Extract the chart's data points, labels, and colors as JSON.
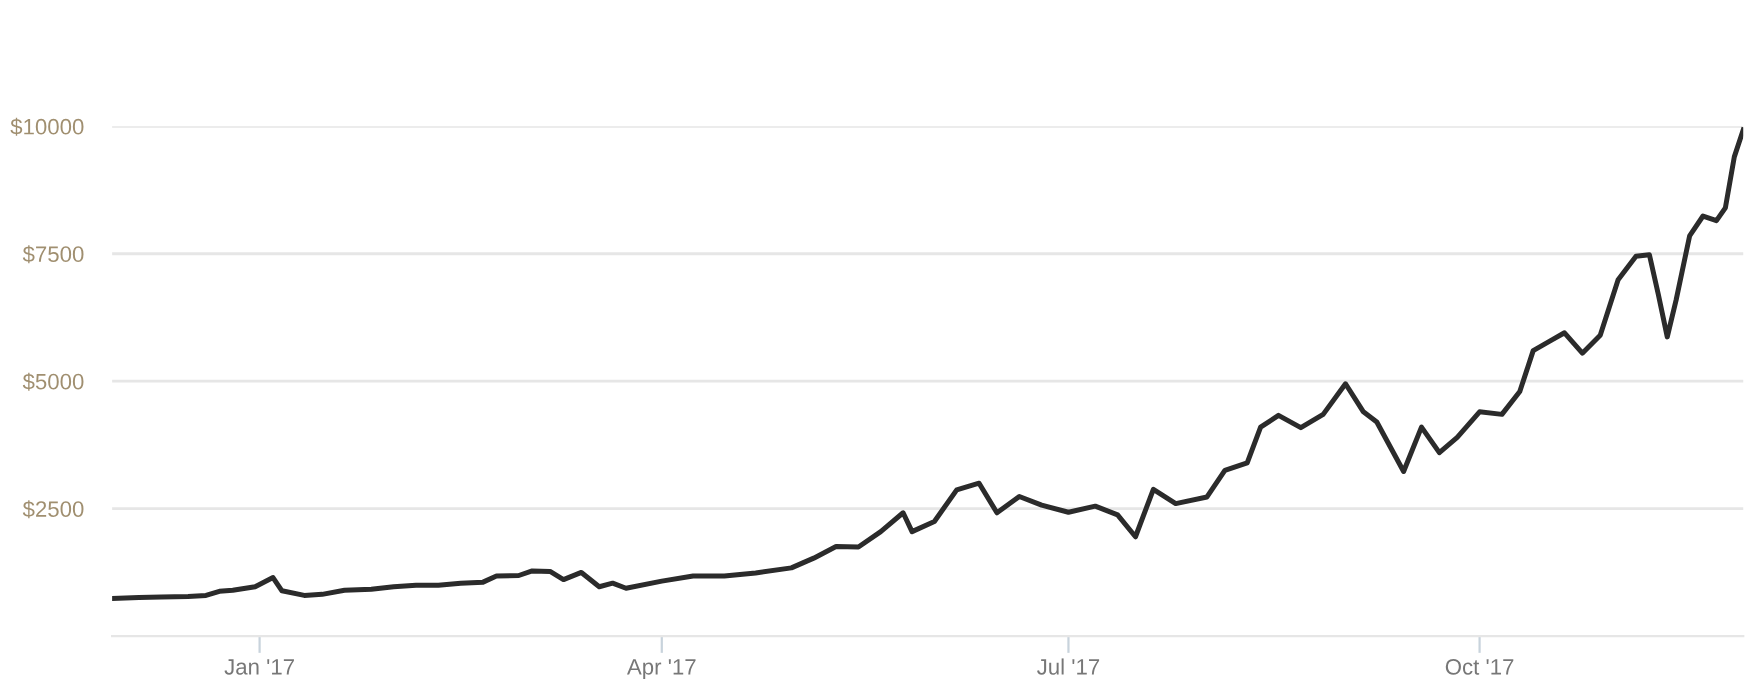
{
  "chart_data": {
    "type": "line",
    "x": [
      "2016-11-29",
      "2016-12-05",
      "2016-12-10",
      "2016-12-16",
      "2016-12-20",
      "2016-12-23",
      "2016-12-26",
      "2016-12-31",
      "2017-01-04",
      "2017-01-06",
      "2017-01-11",
      "2017-01-15",
      "2017-01-20",
      "2017-01-26",
      "2017-01-31",
      "2017-02-05",
      "2017-02-10",
      "2017-02-15",
      "2017-02-20",
      "2017-02-23",
      "2017-02-28",
      "2017-03-03",
      "2017-03-07",
      "2017-03-10",
      "2017-03-14",
      "2017-03-18",
      "2017-03-21",
      "2017-03-24",
      "2017-04-01",
      "2017-04-08",
      "2017-04-15",
      "2017-04-22",
      "2017-04-30",
      "2017-05-05",
      "2017-05-10",
      "2017-05-15",
      "2017-05-20",
      "2017-05-25",
      "2017-05-27",
      "2017-06-01",
      "2017-06-06",
      "2017-06-11",
      "2017-06-15",
      "2017-06-20",
      "2017-06-25",
      "2017-07-01",
      "2017-07-07",
      "2017-07-12",
      "2017-07-16",
      "2017-07-20",
      "2017-07-25",
      "2017-08-01",
      "2017-08-05",
      "2017-08-10",
      "2017-08-13",
      "2017-08-17",
      "2017-08-22",
      "2017-08-27",
      "2017-09-01",
      "2017-09-05",
      "2017-09-08",
      "2017-09-14",
      "2017-09-18",
      "2017-09-22",
      "2017-09-26",
      "2017-10-01",
      "2017-10-06",
      "2017-10-10",
      "2017-10-13",
      "2017-10-17",
      "2017-10-20",
      "2017-10-24",
      "2017-10-28",
      "2017-11-01",
      "2017-11-05",
      "2017-11-08",
      "2017-11-10",
      "2017-11-12",
      "2017-11-14",
      "2017-11-17",
      "2017-11-20",
      "2017-11-23",
      "2017-11-25",
      "2017-11-27",
      "2017-11-29"
    ],
    "series": [
      {
        "color": "#2b2b2b",
        "values": [
          740,
          760,
          770,
          780,
          800,
          880,
          900,
          970,
          1150,
          890,
          800,
          820,
          900,
          920,
          970,
          1000,
          1000,
          1040,
          1060,
          1180,
          1190,
          1280,
          1270,
          1110,
          1250,
          970,
          1040,
          940,
          1080,
          1180,
          1180,
          1240,
          1340,
          1530,
          1760,
          1750,
          2050,
          2420,
          2050,
          2250,
          2870,
          3000,
          2420,
          2740,
          2570,
          2430,
          2550,
          2380,
          1950,
          2880,
          2600,
          2730,
          3250,
          3400,
          4100,
          4330,
          4090,
          4350,
          4950,
          4400,
          4200,
          3230,
          4100,
          3600,
          3900,
          4400,
          4350,
          4800,
          5600,
          5800,
          5950,
          5550,
          5900,
          6990,
          7450,
          7480,
          6700,
          5870,
          6600,
          7850,
          8240,
          8150,
          8400,
          9400,
          9930
        ]
      }
    ],
    "xlim": [
      "2016-11-29",
      "2017-11-29"
    ],
    "ylim": [
      0,
      10000
    ],
    "xticks": [
      {
        "value": "2017-01-01",
        "label": "Jan '17"
      },
      {
        "value": "2017-04-01",
        "label": "Apr '17"
      },
      {
        "value": "2017-07-01",
        "label": "Jul '17"
      },
      {
        "value": "2017-10-01",
        "label": "Oct '17"
      }
    ],
    "yticks": [
      {
        "value": 2500,
        "label": "$2500"
      },
      {
        "value": 5000,
        "label": "$5000"
      },
      {
        "value": 7500,
        "label": "$7500"
      },
      {
        "value": 10000,
        "label": "$10000"
      }
    ],
    "grid": "y",
    "marker": "none",
    "line_style": "solid"
  }
}
